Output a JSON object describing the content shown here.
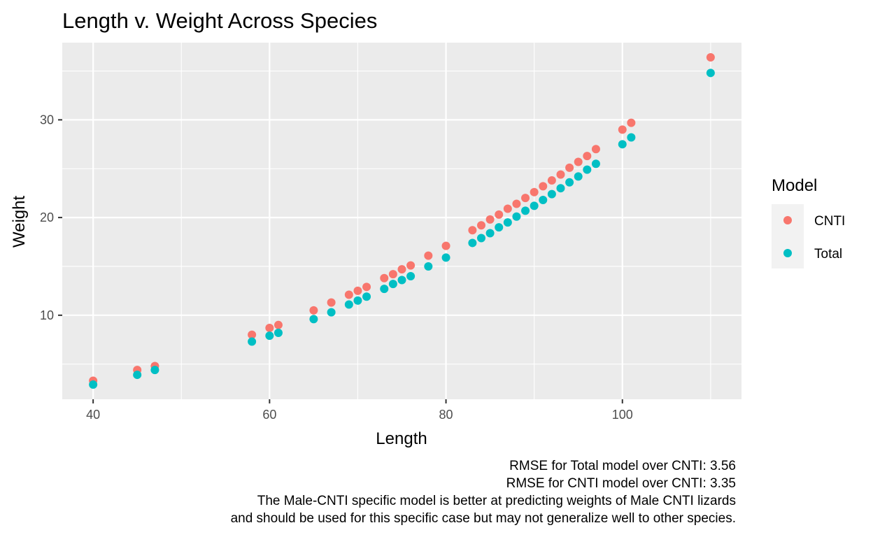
{
  "chart_data": {
    "type": "scatter",
    "title": "Length v. Weight Across Species",
    "xlabel": "Length",
    "ylabel": "Weight",
    "xlim": [
      36.5,
      113.5
    ],
    "ylim": [
      1.4,
      37.9
    ],
    "x_ticks": [
      40,
      60,
      80,
      100
    ],
    "y_ticks": [
      10,
      20,
      30
    ],
    "x_tick_labels": [
      "40",
      "60",
      "80",
      "100"
    ],
    "y_tick_labels": [
      "10",
      "20",
      "30"
    ],
    "grid": true,
    "legend": {
      "title": "Model",
      "position": "right",
      "entries": [
        "CNTI",
        "Total"
      ]
    },
    "x": [
      40,
      45,
      47,
      58,
      60,
      61,
      65,
      67,
      69,
      70,
      71,
      73,
      74,
      75,
      76,
      78,
      80,
      83,
      84,
      85,
      86,
      87,
      88,
      89,
      90,
      91,
      92,
      93,
      94,
      95,
      96,
      97,
      100,
      101,
      110
    ],
    "series": [
      {
        "name": "CNTI",
        "color": "#F8766D",
        "values": [
          3.3,
          4.4,
          4.8,
          8.0,
          8.7,
          9.0,
          10.5,
          11.3,
          12.1,
          12.5,
          12.9,
          13.8,
          14.2,
          14.7,
          15.1,
          16.1,
          17.1,
          18.7,
          19.2,
          19.8,
          20.3,
          20.9,
          21.4,
          22.0,
          22.6,
          23.2,
          23.8,
          24.4,
          25.1,
          25.7,
          26.3,
          27.0,
          29.0,
          29.7,
          36.4
        ]
      },
      {
        "name": "Total",
        "color": "#00BFC4",
        "values": [
          2.9,
          3.9,
          4.4,
          7.3,
          7.9,
          8.2,
          9.6,
          10.3,
          11.1,
          11.5,
          11.9,
          12.7,
          13.2,
          13.6,
          14.0,
          15.0,
          15.9,
          17.4,
          17.9,
          18.4,
          19.0,
          19.5,
          20.1,
          20.7,
          21.2,
          21.8,
          22.4,
          23.0,
          23.6,
          24.2,
          24.9,
          25.5,
          27.5,
          28.2,
          34.8
        ]
      }
    ],
    "caption_lines": [
      "RMSE for Total model over CNTI: 3.56",
      "RMSE for CNTI model over CNTI: 3.35",
      "The Male-CNTI specific model is better at predicting weights of Male CNTI lizards",
      "and should be used for this specific case but may not generalize well to other species."
    ]
  }
}
